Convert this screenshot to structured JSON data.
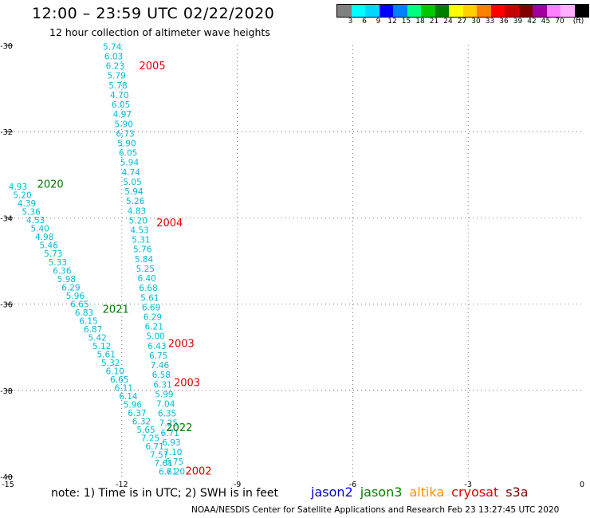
{
  "header": {
    "title": "12:00 – 23:59 UTC 02/22/2020",
    "subtitle": "12 hour collection of altimeter wave heights"
  },
  "colorbar": {
    "colors": [
      "#808080",
      "#00ffff",
      "#00d8ff",
      "#0000ff",
      "#0080ff",
      "#00ff80",
      "#00c800",
      "#008000",
      "#ffff00",
      "#ffd000",
      "#ff8000",
      "#ff0000",
      "#c80000",
      "#800000",
      "#a000a0",
      "#ff80ff",
      "#ffb0ff",
      "#000000"
    ],
    "labels": [
      "3",
      "6",
      "9",
      "12",
      "15",
      "18",
      "21",
      "24",
      "27",
      "30",
      "33",
      "36",
      "39",
      "42",
      "45",
      "70",
      "(ft)"
    ]
  },
  "map": {
    "lon_range": [
      -15,
      0
    ],
    "lat_range": [
      -40,
      -30
    ],
    "x_ticks": [
      "-15",
      "-12",
      "-9",
      "-6",
      "-3",
      "0"
    ],
    "y_ticks": [
      "-30",
      "-32",
      "-34",
      "-36",
      "-38",
      "-40"
    ],
    "track_color": "#00bcd4",
    "tracks": [
      {
        "values": [
          "5.74",
          "6.03",
          "6.23",
          "5.79",
          "5.78",
          "4.70",
          "6.05",
          "4.97",
          "5.90",
          "6.73",
          "5.90",
          "6.05",
          "5.94",
          "4.74",
          "5.05",
          "5.94",
          "5.26",
          "4.83",
          "5.20",
          "4.53",
          "5.31",
          "5.76",
          "5.84",
          "5.25",
          "6.40",
          "6.68",
          "5.61",
          "6.69",
          "6.29",
          "6.21",
          "5.00",
          "6.43",
          "6.75",
          "7.46",
          "6.58",
          "6.31",
          "5.99",
          "7.04",
          "6.35",
          "7.25",
          "6.71",
          "6.93",
          "7.10",
          "6.75",
          "7.20"
        ],
        "start": [
          -12.25,
          -30.1
        ],
        "end": [
          -10.6,
          -39.95
        ]
      },
      {
        "values": [
          "4.93",
          "5.20",
          "4.39",
          "5.36",
          "4.53",
          "5.40",
          "4.98",
          "5.46",
          "5.73",
          "5.33",
          "6.36",
          "5.98",
          "6.29",
          "5.96",
          "6.65",
          "6.83",
          "6.15",
          "6.87",
          "5.42",
          "5.12",
          "5.61",
          "5.32",
          "6.10",
          "6.65",
          "6.11",
          "6.14",
          "5.96",
          "6.37",
          "6.32",
          "5.65",
          "7.25",
          "6.71",
          "7.57",
          "7.61",
          "6.61"
        ],
        "start": [
          -14.7,
          -33.35
        ],
        "end": [
          -10.8,
          -39.95
        ]
      }
    ],
    "annotations": [
      {
        "text": "2005",
        "lon": -11.55,
        "lat": -30.55,
        "color": "#e00000"
      },
      {
        "text": "2020",
        "lon": -14.2,
        "lat": -33.3,
        "color": "#007a00"
      },
      {
        "text": "2004",
        "lon": -11.1,
        "lat": -34.2,
        "color": "#e00000"
      },
      {
        "text": "2021",
        "lon": -12.5,
        "lat": -36.2,
        "color": "#007a00"
      },
      {
        "text": "2003",
        "lon": -10.8,
        "lat": -37.0,
        "color": "#e00000"
      },
      {
        "text": "2003",
        "lon": -10.65,
        "lat": -37.9,
        "color": "#e00000"
      },
      {
        "text": "2022",
        "lon": -10.85,
        "lat": -38.95,
        "color": "#007a00"
      },
      {
        "text": "2002",
        "lon": -10.35,
        "lat": -39.95,
        "color": "#e00000"
      }
    ]
  },
  "note": "note:  1) Time is in UTC; 2) SWH is in feet",
  "legend": [
    {
      "name": "jason2",
      "color": "#0000d0"
    },
    {
      "name": "jason3",
      "color": "#008000"
    },
    {
      "name": "altika",
      "color": "#ff9000"
    },
    {
      "name": "cryosat",
      "color": "#e00000"
    },
    {
      "name": "s3a",
      "color": "#800000"
    }
  ],
  "footer": "NOAA/NESDIS Center for Satellite Applications and Research     Feb 23 13:27:45 UTC 2020"
}
